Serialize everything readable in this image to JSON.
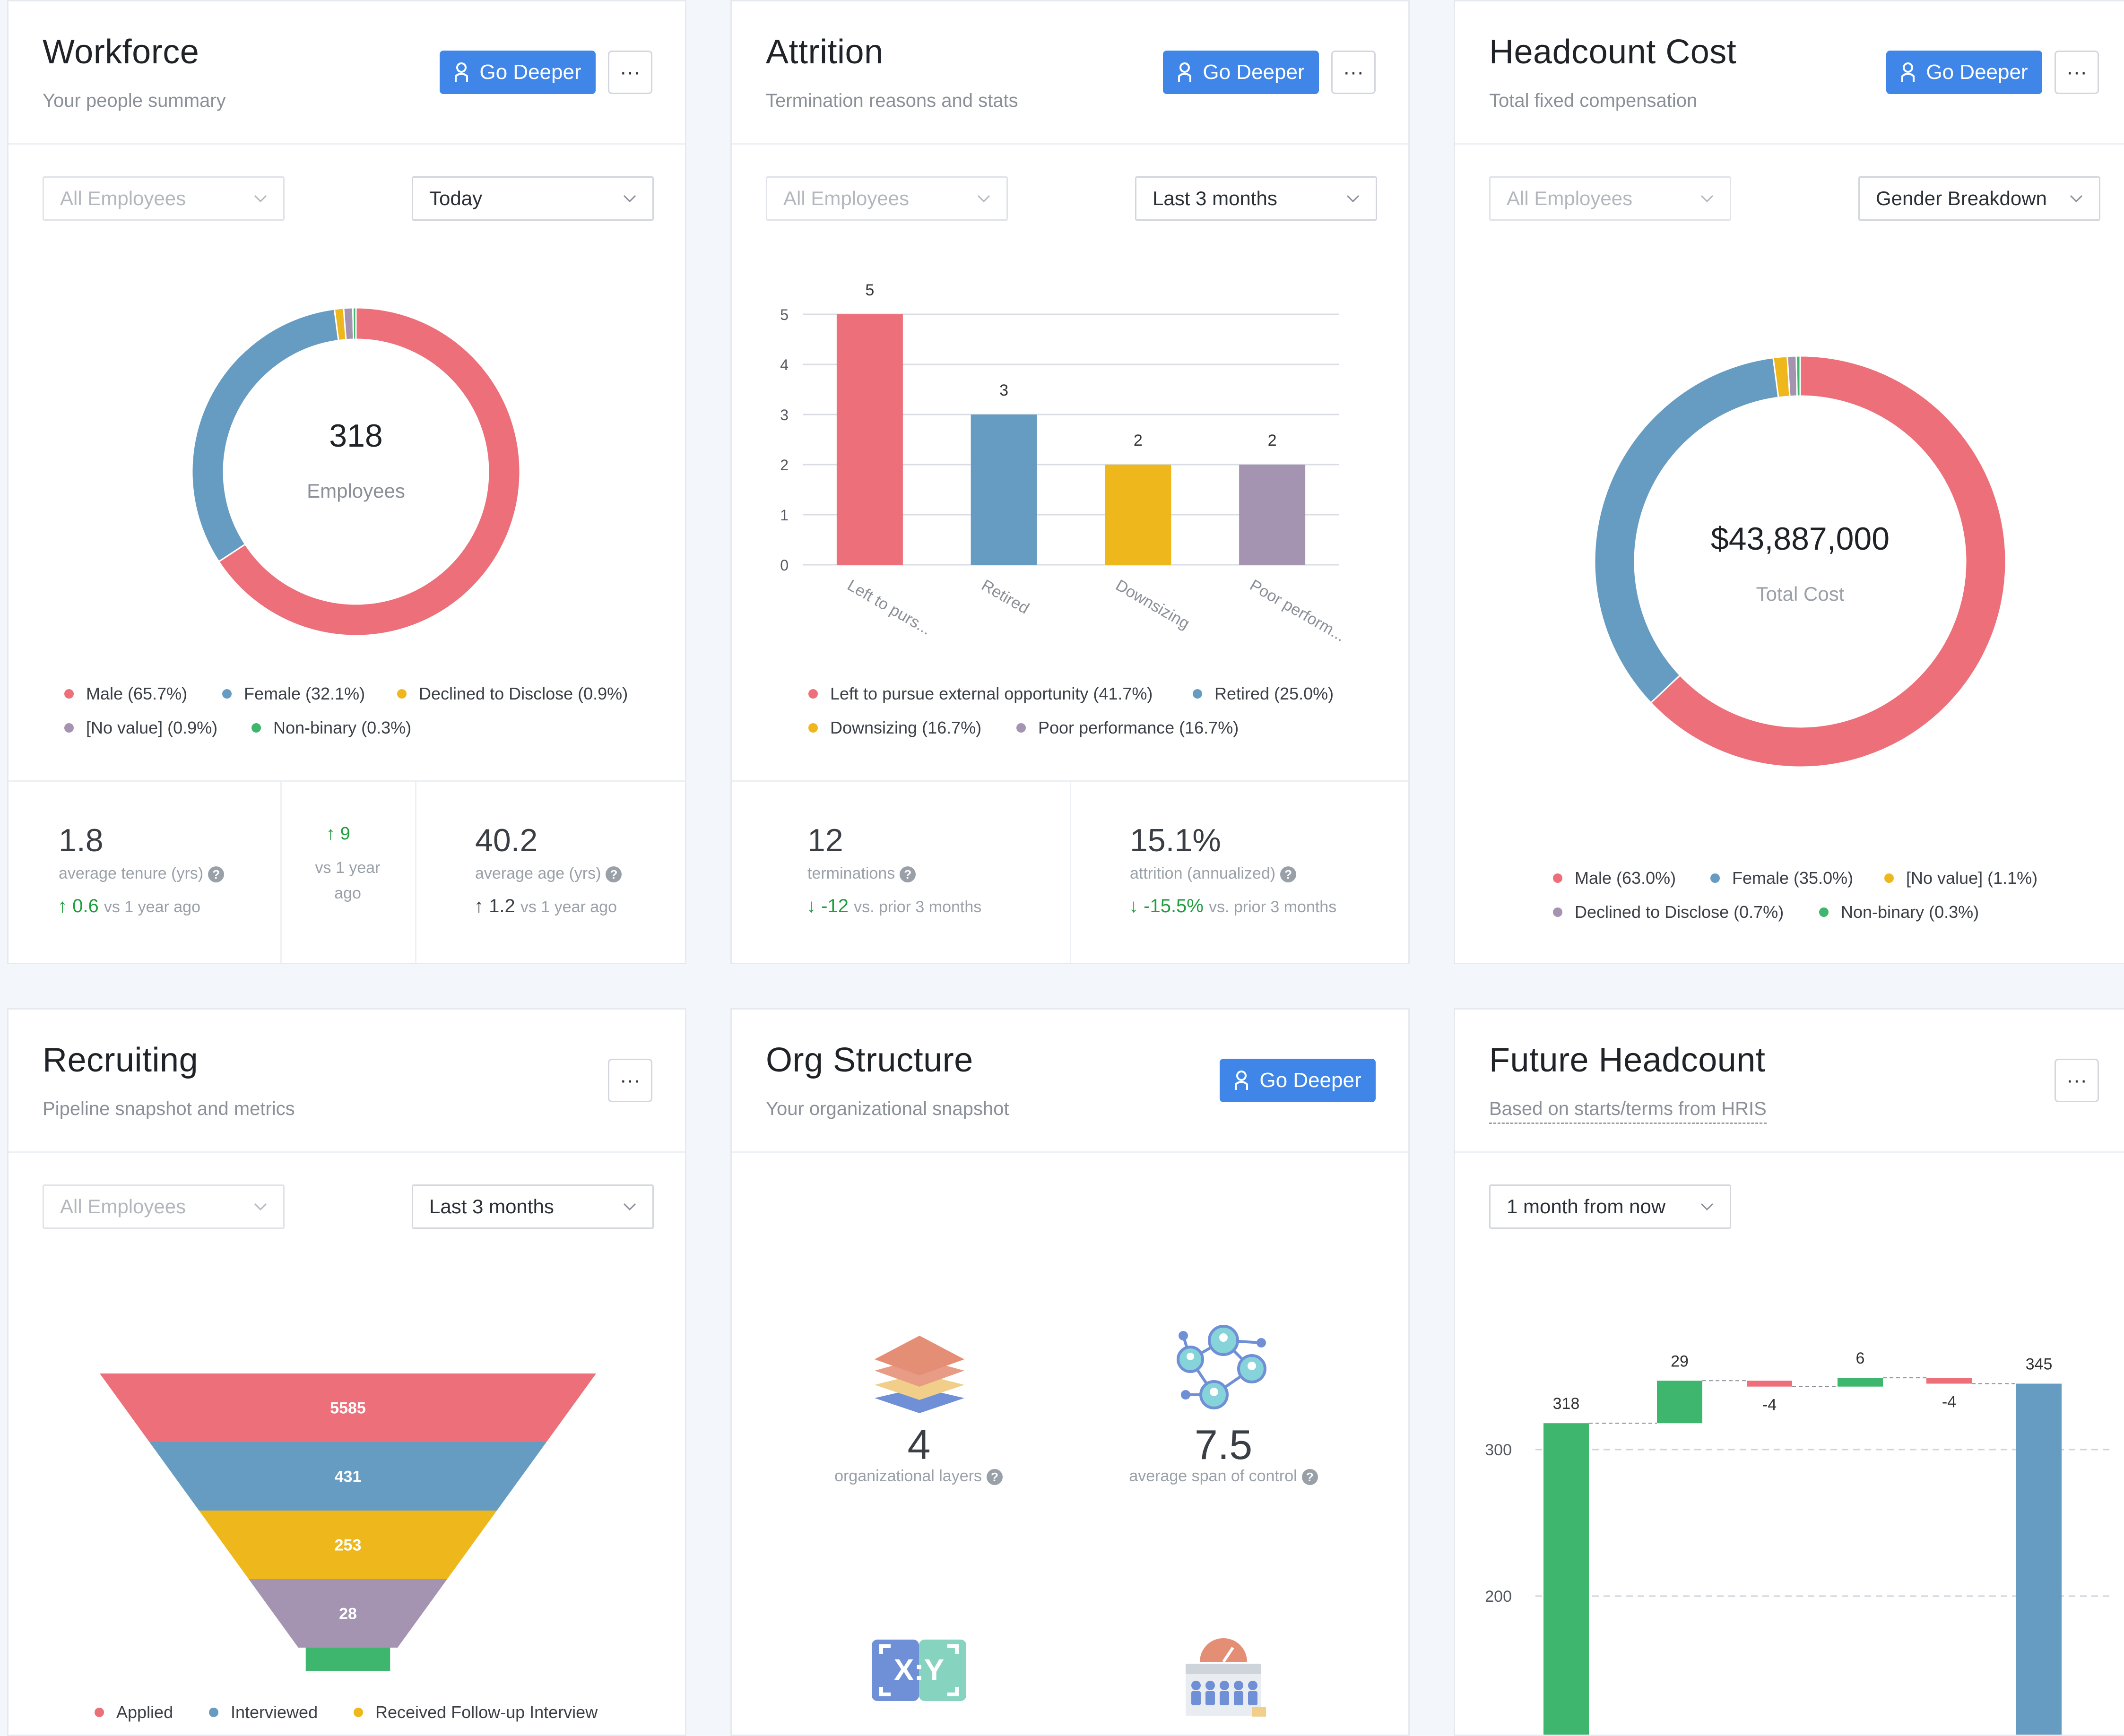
{
  "colors": {
    "red": "#ec6f7a",
    "blue": "#679cc2",
    "yellow": "#eeb81d",
    "purple": "#a494b1",
    "green": "#3fb66e",
    "accent": "#3f86e8"
  },
  "workforce": {
    "title": "Workforce",
    "subtitle": "Your people summary",
    "go_deeper": "Go Deeper",
    "more": "···",
    "filter_group": "All Employees",
    "filter_time": "Today",
    "center_value": "318",
    "center_label": "Employees",
    "legend": [
      "Male (65.7%)",
      "Female (32.1%)",
      "Declined to Disclose (0.9%)",
      "[No value] (0.9%)",
      "Non-binary (0.3%)"
    ],
    "stats": {
      "tenure_value": "1.8",
      "tenure_label": "average tenure (yrs)",
      "tenure_delta": "0.6",
      "tenure_cmp": "vs 1 year ago",
      "mid_delta": "9",
      "mid_cmp_1": "vs 1 year",
      "mid_cmp_2": "ago",
      "age_value": "40.2",
      "age_label": "average age (yrs)",
      "age_delta": "1.2",
      "age_cmp": "vs 1 year ago"
    }
  },
  "attrition": {
    "title": "Attrition",
    "subtitle": "Termination reasons and stats",
    "go_deeper": "Go Deeper",
    "more": "···",
    "filter_group": "All Employees",
    "filter_time": "Last 3 months",
    "legend": [
      "Left to pursue external opportunity (41.7%)",
      "Retired (25.0%)",
      "Downsizing (16.7%)",
      "Poor performance (16.7%)"
    ],
    "stats": {
      "terminations_value": "12",
      "terminations_label": "terminations",
      "terminations_delta": "-12",
      "terminations_cmp": "vs. prior 3 months",
      "attrition_value": "15.1%",
      "attrition_label": "attrition (annualized)",
      "attrition_delta": "-15.5%",
      "attrition_cmp": "vs. prior 3 months"
    }
  },
  "headcount_cost": {
    "title": "Headcount Cost",
    "subtitle": "Total fixed compensation",
    "go_deeper": "Go Deeper",
    "more": "···",
    "filter_group": "All Employees",
    "filter_breakdown": "Gender Breakdown",
    "center_value": "$43,887,000",
    "center_label": "Total Cost",
    "legend": [
      "Male (63.0%)",
      "Female (35.0%)",
      "[No value] (1.1%)",
      "Declined to Disclose (0.7%)",
      "Non-binary (0.3%)"
    ]
  },
  "recruiting": {
    "title": "Recruiting",
    "subtitle": "Pipeline snapshot and metrics",
    "more": "···",
    "filter_group": "All Employees",
    "filter_time": "Last 3 months",
    "legend": [
      "Applied",
      "Interviewed",
      "Received Follow-up Interview"
    ]
  },
  "org_structure": {
    "title": "Org Structure",
    "subtitle": "Your organizational snapshot",
    "go_deeper": "Go Deeper",
    "layers_value": "4",
    "layers_label": "organizational layers",
    "span_value": "7.5",
    "span_label": "average span of control"
  },
  "future_headcount": {
    "title": "Future Headcount",
    "subtitle": "Based on starts/terms from HRIS",
    "more": "···",
    "filter_time": "1 month from now"
  },
  "chart_data": [
    {
      "type": "pie",
      "labels": [
        "Male",
        "Female",
        "Declined to Disclose",
        "[No value]",
        "Non-binary"
      ],
      "values": [
        65.7,
        32.1,
        0.9,
        0.9,
        0.3
      ],
      "colors": [
        "#ec6f7a",
        "#679cc2",
        "#eeb81d",
        "#a494b1",
        "#3fb66e"
      ],
      "title": ""
    },
    {
      "type": "bar",
      "categories": [
        "Left to purs...",
        "Retired",
        "Downsizing",
        "Poor perform..."
      ],
      "values": [
        5,
        3,
        2,
        2
      ],
      "colors": [
        "#ec6f7a",
        "#679cc2",
        "#eeb81d",
        "#a494b1"
      ],
      "yticks": [
        0,
        1,
        2,
        3,
        4,
        5
      ],
      "ylim": [
        0,
        5
      ],
      "grid": true,
      "title": "",
      "xlabel": "",
      "ylabel": ""
    },
    {
      "type": "pie",
      "labels": [
        "Male",
        "Female",
        "[No value]",
        "Declined to Disclose",
        "Non-binary"
      ],
      "values": [
        63.0,
        35.0,
        1.1,
        0.7,
        0.3
      ],
      "colors": [
        "#ec6f7a",
        "#679cc2",
        "#eeb81d",
        "#a494b1",
        "#3fb66e"
      ],
      "title": ""
    },
    {
      "type": "bar",
      "subtype": "funnel",
      "categories": [
        "Applied",
        "Interviewed",
        "Received Follow-up Interview",
        "",
        ""
      ],
      "values": [
        5585,
        431,
        253,
        28,
        17
      ],
      "colors": [
        "#ec6f7a",
        "#679cc2",
        "#eeb81d",
        "#a494b1",
        "#3fb66e"
      ],
      "title": ""
    },
    {
      "type": "bar",
      "subtype": "waterfall",
      "steps": [
        {
          "kind": "total",
          "value": 318,
          "label": "318"
        },
        {
          "kind": "delta",
          "value": 29,
          "label": "29"
        },
        {
          "kind": "delta",
          "value": -4,
          "label": "-4"
        },
        {
          "kind": "delta",
          "value": 6,
          "label": "6"
        },
        {
          "kind": "delta",
          "value": -4,
          "label": "-4"
        },
        {
          "kind": "total",
          "value": 345,
          "label": "345"
        }
      ],
      "yticks": [
        100,
        200,
        300
      ],
      "grid": true,
      "title": ""
    }
  ]
}
